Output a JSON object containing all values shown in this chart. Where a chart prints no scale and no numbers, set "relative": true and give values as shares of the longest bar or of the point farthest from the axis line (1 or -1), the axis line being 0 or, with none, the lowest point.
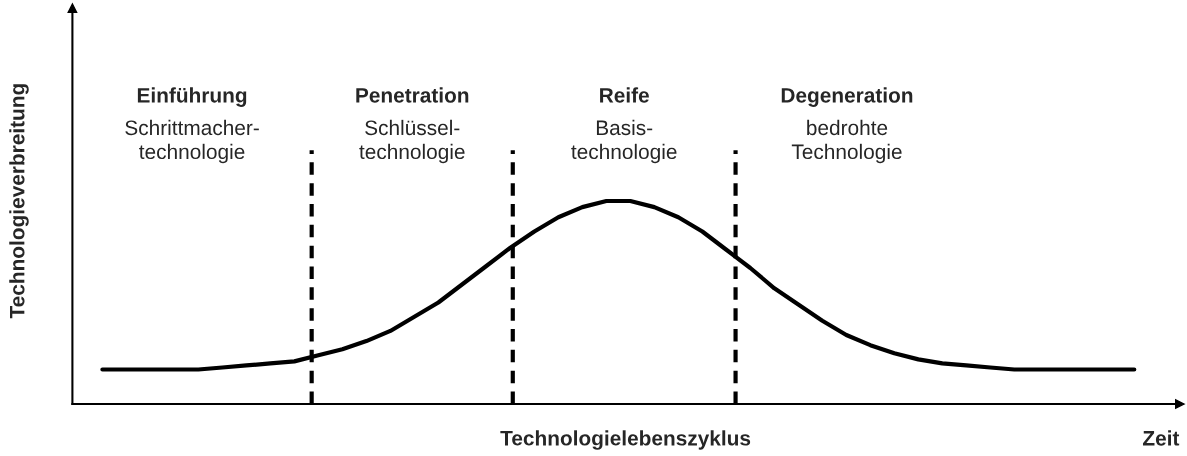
{
  "chart_data": {
    "type": "line",
    "relative": true,
    "xlabel": "Technologielebenszyklus",
    "ylabel": "Technologieverbreitung",
    "categories": [
      null,
      null,
      null,
      null,
      null,
      null,
      null,
      null,
      null,
      null,
      null,
      null,
      null,
      null,
      null,
      null,
      null,
      null,
      null,
      null,
      null,
      null,
      null,
      null,
      null,
      null,
      null,
      null,
      null,
      null,
      null,
      null,
      null,
      null,
      null,
      null,
      null,
      null,
      null,
      null,
      null,
      null,
      null,
      null
    ],
    "series": [
      {
        "color": "#000000",
        "values": [
          0.17,
          0.17,
          0.17,
          0.17,
          0.17,
          0.18,
          0.19,
          0.2,
          0.21,
          0.24,
          0.27,
          0.31,
          0.36,
          0.43,
          0.5,
          0.59,
          0.68,
          0.77,
          0.85,
          0.92,
          0.97,
          1.0,
          1.0,
          0.97,
          0.92,
          0.85,
          0.76,
          0.67,
          0.57,
          0.49,
          0.41,
          0.34,
          0.29,
          0.25,
          0.22,
          0.2,
          0.19,
          0.18,
          0.17,
          0.17,
          0.17,
          0.17,
          0.17,
          0.17
        ]
      }
    ],
    "line_style": "solid",
    "marker": "none",
    "annotations": [
      "Einführung\nSchrittmacher-\ntechnologie",
      "Penetration\nSchlüssel-\ntechnologie",
      "Reife\nBasis-\ntechnologie",
      "Degeneration\nbedrohte\nTechnologie",
      "Zeit"
    ]
  }
}
